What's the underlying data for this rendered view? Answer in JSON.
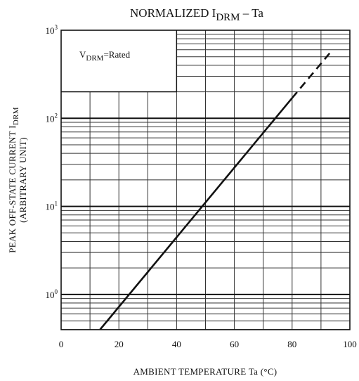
{
  "chart_data": {
    "type": "line",
    "title": {
      "prefix": "NORMALIZED I",
      "subscript": "DRM",
      "suffix": " – Ta"
    },
    "xlabel": "AMBIENT TEMPERATURE   Ta   (°C)",
    "ylabel_line1": "PEAK OFF-STATE CURRENT   I",
    "ylabel_subscript": "DRM",
    "ylabel_line2": "(ARBITRARY UNIT)",
    "xlim": [
      0,
      100
    ],
    "ylim_log10": [
      -0.4,
      3
    ],
    "yscale": "log",
    "grid": true,
    "x_ticks": [
      "0",
      "20",
      "40",
      "60",
      "80",
      "100"
    ],
    "x_tick_values": [
      0,
      20,
      40,
      60,
      80,
      100
    ],
    "y_ticks": [
      {
        "base": "10",
        "exp": "0",
        "value": 1
      },
      {
        "base": "10",
        "exp": "1",
        "value": 10
      },
      {
        "base": "10",
        "exp": "2",
        "value": 100
      },
      {
        "base": "10",
        "exp": "3",
        "value": 1000
      }
    ],
    "annotation": {
      "prefix": "V",
      "subscript": "DRM",
      "suffix": "=Rated"
    },
    "series": [
      {
        "solid": {
          "x": [
            13.5,
            80
          ],
          "y": [
            0.4,
            170
          ]
        },
        "dashed": {
          "x": [
            80,
            94
          ],
          "y": [
            170,
            600
          ]
        }
      }
    ]
  }
}
